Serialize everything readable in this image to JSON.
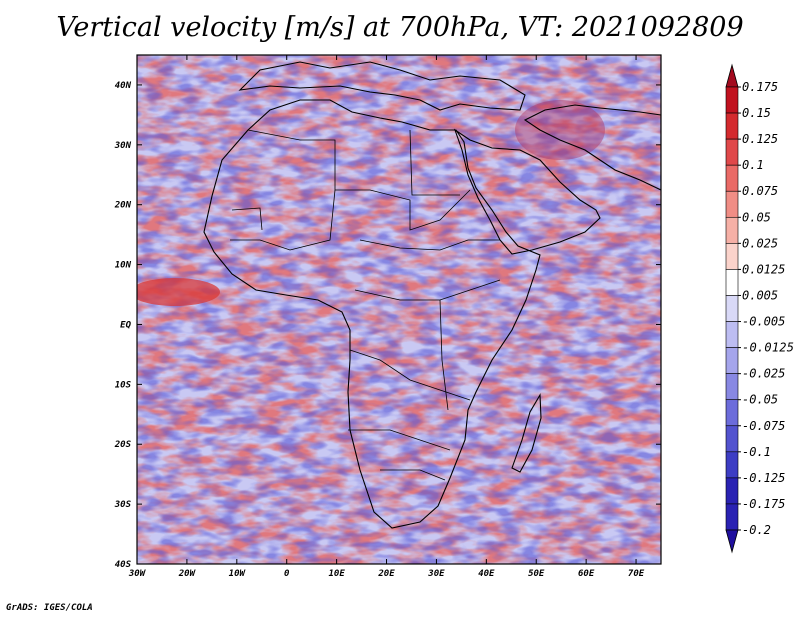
{
  "title": "Vertical velocity [m/s] at 700hPa, VT: 2021092809",
  "credit": "GrADS: IGES/COLA",
  "map": {
    "lon_range": [
      -30,
      75
    ],
    "lat_range": [
      -40,
      45
    ],
    "lat_ticks": [
      {
        "value": 40,
        "label": "40N"
      },
      {
        "value": 30,
        "label": "30N"
      },
      {
        "value": 20,
        "label": "20N"
      },
      {
        "value": 10,
        "label": "10N"
      },
      {
        "value": 0,
        "label": "EQ"
      },
      {
        "value": -10,
        "label": "10S"
      },
      {
        "value": -20,
        "label": "20S"
      },
      {
        "value": -30,
        "label": "30S"
      },
      {
        "value": -40,
        "label": "40S"
      }
    ],
    "lon_ticks": [
      {
        "value": -30,
        "label": "30W"
      },
      {
        "value": -20,
        "label": "20W"
      },
      {
        "value": -10,
        "label": "10W"
      },
      {
        "value": 0,
        "label": "0"
      },
      {
        "value": 10,
        "label": "10E"
      },
      {
        "value": 20,
        "label": "20E"
      },
      {
        "value": 30,
        "label": "30E"
      },
      {
        "value": 40,
        "label": "40E"
      },
      {
        "value": 50,
        "label": "50E"
      },
      {
        "value": 60,
        "label": "60E"
      },
      {
        "value": 70,
        "label": "70E"
      }
    ]
  },
  "colorbar": {
    "labels": [
      "0.175",
      "0.15",
      "0.125",
      "0.1",
      "0.075",
      "0.05",
      "0.025",
      "0.0125",
      "0.005",
      "-0.005",
      "-0.0125",
      "-0.025",
      "-0.05",
      "-0.075",
      "-0.1",
      "-0.125",
      "-0.175",
      "-0.2"
    ],
    "colors": [
      "#a30a1e",
      "#c1121f",
      "#d42a2e",
      "#e0484a",
      "#ea6a66",
      "#f08d85",
      "#f6b0a6",
      "#fbd3cb",
      "#ffffff",
      "#d9d9f7",
      "#bdbdf2",
      "#a5a5ec",
      "#8888e3",
      "#6c6cdb",
      "#5353cf",
      "#3d3dc4",
      "#2a22b3",
      "#1f0f9e"
    ]
  }
}
